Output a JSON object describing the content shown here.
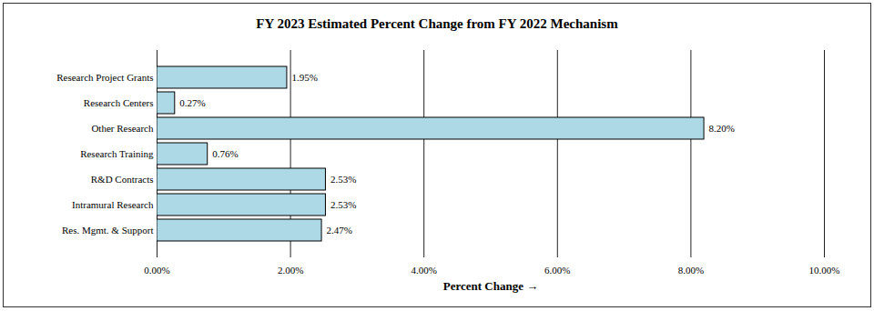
{
  "chart_data": {
    "type": "bar",
    "orientation": "horizontal",
    "title": "FY 2023 Estimated Percent Change from FY 2022 Mechanism",
    "x_label": "Percent Change",
    "categories": [
      "Research Project Grants",
      "Research Centers",
      "Other Research",
      "Research Training",
      "R&D Contracts",
      "Intramural Research",
      "Res. Mgmt. & Support"
    ],
    "values": [
      1.95,
      0.27,
      8.2,
      0.76,
      2.53,
      2.53,
      2.47
    ],
    "value_labels": [
      "1.95%",
      "0.27%",
      "8.20%",
      "0.76%",
      "2.53%",
      "2.53%",
      "2.47%"
    ],
    "data_labels": true,
    "color": "#add8e6",
    "xlim": [
      0,
      10
    ],
    "xticks": [
      {
        "value": 0,
        "label": "0.00%"
      },
      {
        "value": 2,
        "label": "2.00%"
      },
      {
        "value": 4,
        "label": "4.00%"
      },
      {
        "value": 6,
        "label": "6.00%"
      },
      {
        "value": 8,
        "label": "8.00%"
      },
      {
        "value": 10,
        "label": "10.00%"
      }
    ],
    "grid": true
  }
}
